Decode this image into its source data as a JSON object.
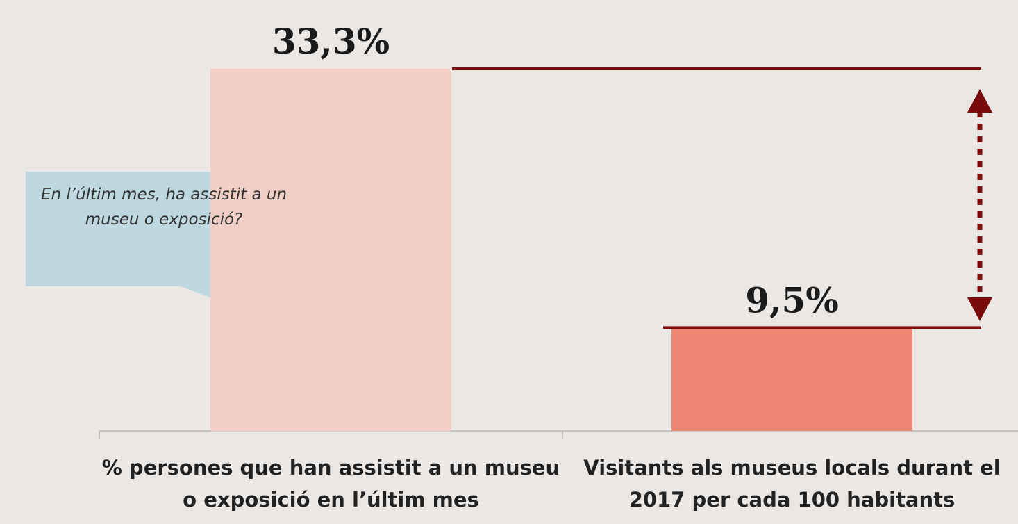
{
  "chart_data": {
    "type": "bar",
    "categories": [
      "% persones que han assistit a un museu o exposició en l’últim mes",
      "Visitants als museus locals durant el 2017 per cada 100 habitants"
    ],
    "values": [
      33.3,
      9.5
    ],
    "value_labels": [
      "33,3%",
      "9,5%"
    ],
    "colors": [
      "#f2cfc6",
      "#ec8873"
    ],
    "annotation": "En l’últim mes, ha assistit a un museu o exposició?"
  }
}
